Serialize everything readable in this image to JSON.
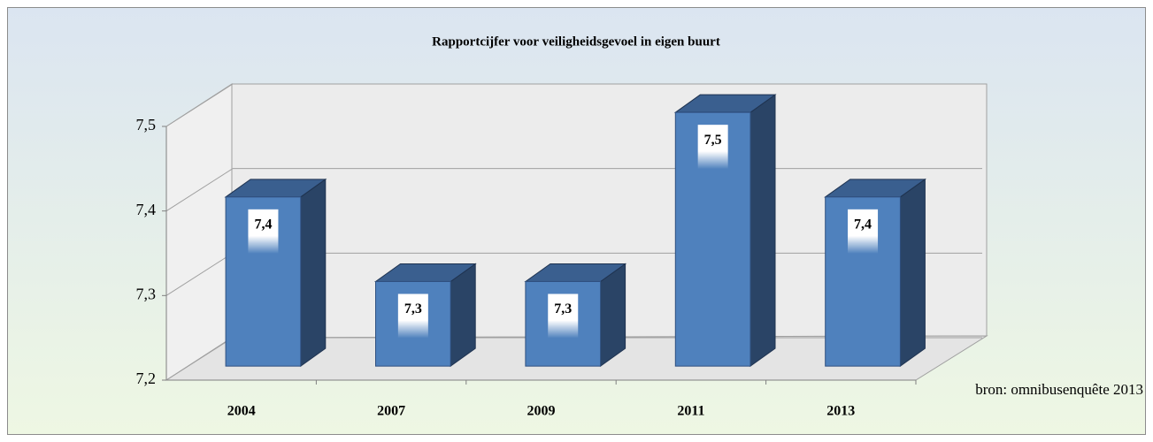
{
  "chart_data": {
    "type": "bar3d",
    "title": "Rapportcijfer voor veiligheidsgevoel in eigen buurt",
    "categories": [
      "2004",
      "2007",
      "2009",
      "2011",
      "2013"
    ],
    "values": [
      7.4,
      7.3,
      7.3,
      7.5,
      7.4
    ],
    "value_labels": [
      "7,4",
      "7,3",
      "7,3",
      "7,5",
      "7,4"
    ],
    "color": "#4f81bd",
    "ylim": [
      7.2,
      7.5
    ],
    "yticks": [
      {
        "value": 7.2,
        "label": "7,2"
      },
      {
        "value": 7.3,
        "label": "7,3"
      },
      {
        "value": 7.4,
        "label": "7,4"
      },
      {
        "value": 7.5,
        "label": "7,5"
      }
    ],
    "grid": true,
    "annotation": "bron: omnibusenquête 2013"
  }
}
